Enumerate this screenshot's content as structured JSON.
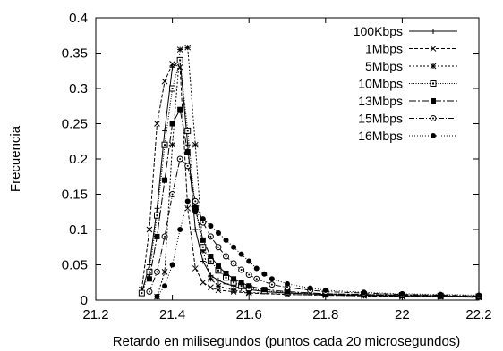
{
  "chart_data": {
    "type": "line",
    "xlabel": "Retardo en milisegundos (puntos cada 20 microsegundos)",
    "ylabel": "Frecuencia",
    "xlim": [
      21.2,
      22.2
    ],
    "ylim": [
      0,
      0.4
    ],
    "xticks": [
      "21.2",
      "21.4",
      "21.6",
      "21.8",
      "22",
      "22.2"
    ],
    "yticks": [
      "0",
      "0.05",
      "0.1",
      "0.15",
      "0.2",
      "0.25",
      "0.3",
      "0.35",
      "0.4"
    ],
    "grid": false,
    "legend_position": "top-right",
    "series": [
      {
        "name": "100Kbps",
        "marker": "plus",
        "dash": "",
        "points": [
          [
            21.32,
            0.01
          ],
          [
            21.34,
            0.05
          ],
          [
            21.36,
            0.13
          ],
          [
            21.38,
            0.24
          ],
          [
            21.4,
            0.33
          ],
          [
            21.42,
            0.34
          ],
          [
            21.44,
            0.22
          ],
          [
            21.46,
            0.1
          ],
          [
            21.48,
            0.055
          ],
          [
            21.5,
            0.035
          ],
          [
            21.52,
            0.028
          ],
          [
            21.54,
            0.023
          ],
          [
            21.56,
            0.02
          ],
          [
            21.58,
            0.017
          ],
          [
            21.6,
            0.015
          ],
          [
            21.64,
            0.012
          ],
          [
            21.7,
            0.01
          ],
          [
            21.8,
            0.008
          ],
          [
            21.9,
            0.007
          ],
          [
            22.0,
            0.006
          ],
          [
            22.1,
            0.006
          ],
          [
            22.2,
            0.005
          ]
        ]
      },
      {
        "name": "1Mbps",
        "marker": "x",
        "dash": "4,2",
        "points": [
          [
            21.32,
            0.015
          ],
          [
            21.34,
            0.1
          ],
          [
            21.36,
            0.25
          ],
          [
            21.38,
            0.31
          ],
          [
            21.4,
            0.335
          ],
          [
            21.42,
            0.33
          ],
          [
            21.44,
            0.13
          ],
          [
            21.46,
            0.045
          ],
          [
            21.48,
            0.025
          ],
          [
            21.5,
            0.018
          ],
          [
            21.52,
            0.014
          ],
          [
            21.56,
            0.012
          ],
          [
            21.6,
            0.01
          ],
          [
            21.7,
            0.008
          ],
          [
            21.8,
            0.007
          ],
          [
            21.9,
            0.006
          ],
          [
            22.0,
            0.005
          ],
          [
            22.1,
            0.005
          ],
          [
            22.2,
            0.004
          ]
        ]
      },
      {
        "name": "5Mbps",
        "marker": "star",
        "dash": "2,2",
        "points": [
          [
            21.36,
            0.005
          ],
          [
            21.38,
            0.04
          ],
          [
            21.4,
            0.22
          ],
          [
            21.42,
            0.355
          ],
          [
            21.44,
            0.358
          ],
          [
            21.46,
            0.22
          ],
          [
            21.48,
            0.07
          ],
          [
            21.5,
            0.03
          ],
          [
            21.52,
            0.02
          ],
          [
            21.56,
            0.014
          ],
          [
            21.6,
            0.011
          ],
          [
            21.7,
            0.008
          ],
          [
            21.8,
            0.007
          ],
          [
            21.9,
            0.006
          ],
          [
            22.0,
            0.005
          ],
          [
            22.1,
            0.005
          ],
          [
            22.2,
            0.004
          ]
        ]
      },
      {
        "name": "10Mbps",
        "marker": "square",
        "dash": "1,1.5",
        "points": [
          [
            21.32,
            0.01
          ],
          [
            21.34,
            0.04
          ],
          [
            21.36,
            0.12
          ],
          [
            21.38,
            0.22
          ],
          [
            21.4,
            0.3
          ],
          [
            21.42,
            0.34
          ],
          [
            21.44,
            0.24
          ],
          [
            21.46,
            0.13
          ],
          [
            21.48,
            0.075
          ],
          [
            21.5,
            0.055
          ],
          [
            21.52,
            0.042
          ],
          [
            21.54,
            0.032
          ],
          [
            21.56,
            0.025
          ],
          [
            21.58,
            0.02
          ],
          [
            21.6,
            0.017
          ],
          [
            21.64,
            0.013
          ],
          [
            21.7,
            0.011
          ],
          [
            21.8,
            0.009
          ],
          [
            21.9,
            0.008
          ],
          [
            22.0,
            0.007
          ],
          [
            22.1,
            0.006
          ],
          [
            22.2,
            0.005
          ]
        ]
      },
      {
        "name": "13Mbps",
        "marker": "filled-square",
        "dash": "8,2,2,2",
        "points": [
          [
            21.34,
            0.03
          ],
          [
            21.36,
            0.09
          ],
          [
            21.38,
            0.17
          ],
          [
            21.4,
            0.25
          ],
          [
            21.42,
            0.27
          ],
          [
            21.44,
            0.21
          ],
          [
            21.46,
            0.13
          ],
          [
            21.48,
            0.085
          ],
          [
            21.5,
            0.062
          ],
          [
            21.52,
            0.048
          ],
          [
            21.54,
            0.038
          ],
          [
            21.56,
            0.03
          ],
          [
            21.58,
            0.025
          ],
          [
            21.6,
            0.02
          ],
          [
            21.64,
            0.015
          ],
          [
            21.7,
            0.012
          ],
          [
            21.8,
            0.009
          ],
          [
            21.9,
            0.008
          ],
          [
            22.0,
            0.007
          ],
          [
            22.1,
            0.006
          ],
          [
            22.2,
            0.005
          ]
        ]
      },
      {
        "name": "15Mbps",
        "marker": "circle-dot",
        "dash": "6,2,1,2",
        "points": [
          [
            21.34,
            0.012
          ],
          [
            21.36,
            0.04
          ],
          [
            21.38,
            0.09
          ],
          [
            21.4,
            0.15
          ],
          [
            21.42,
            0.2
          ],
          [
            21.44,
            0.19
          ],
          [
            21.46,
            0.14
          ],
          [
            21.48,
            0.11
          ],
          [
            21.5,
            0.09
          ],
          [
            21.52,
            0.075
          ],
          [
            21.54,
            0.062
          ],
          [
            21.56,
            0.052
          ],
          [
            21.58,
            0.043
          ],
          [
            21.6,
            0.036
          ],
          [
            21.62,
            0.03
          ],
          [
            21.66,
            0.022
          ],
          [
            21.7,
            0.018
          ],
          [
            21.76,
            0.014
          ],
          [
            21.8,
            0.012
          ],
          [
            21.9,
            0.01
          ],
          [
            22.0,
            0.008
          ],
          [
            22.1,
            0.007
          ],
          [
            22.2,
            0.006
          ]
        ]
      },
      {
        "name": "16Mbps",
        "marker": "filled-circle",
        "dash": "1,2",
        "points": [
          [
            21.36,
            0.005
          ],
          [
            21.38,
            0.02
          ],
          [
            21.4,
            0.05
          ],
          [
            21.42,
            0.1
          ],
          [
            21.44,
            0.14
          ],
          [
            21.46,
            0.125
          ],
          [
            21.48,
            0.115
          ],
          [
            21.5,
            0.105
          ],
          [
            21.52,
            0.095
          ],
          [
            21.54,
            0.085
          ],
          [
            21.56,
            0.075
          ],
          [
            21.58,
            0.065
          ],
          [
            21.6,
            0.055
          ],
          [
            21.62,
            0.045
          ],
          [
            21.64,
            0.037
          ],
          [
            21.66,
            0.03
          ],
          [
            21.7,
            0.023
          ],
          [
            21.76,
            0.017
          ],
          [
            21.8,
            0.014
          ],
          [
            21.9,
            0.011
          ],
          [
            22.0,
            0.009
          ],
          [
            22.1,
            0.008
          ],
          [
            22.2,
            0.007
          ]
        ]
      }
    ]
  }
}
